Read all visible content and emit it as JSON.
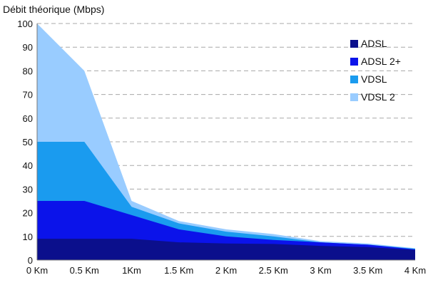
{
  "chart_data": {
    "type": "area",
    "stacked": false,
    "ylabel": "Débit théorique (Mbps)",
    "xlabel": "",
    "x": [
      0,
      0.5,
      1,
      1.5,
      2,
      2.5,
      3,
      3.5,
      4
    ],
    "x_tick_labels": [
      "0 Km",
      "0.5 Km",
      "1Km",
      "1.5 Km",
      "2 Km",
      "2.5 Km",
      "3 Km",
      "3.5 Km",
      "4 Km"
    ],
    "ylim": [
      0,
      100
    ],
    "y_ticks": [
      0,
      10,
      20,
      30,
      40,
      50,
      60,
      70,
      80,
      90,
      100
    ],
    "grid": true,
    "legend_position": "right",
    "series": [
      {
        "name": "VDSL 2",
        "color": "#99ccff",
        "x": [
          0,
          0.5,
          1,
          1.5,
          2,
          2.5,
          3,
          3.5,
          4
        ],
        "values": [
          100,
          80,
          25,
          16.5,
          13,
          11,
          8,
          7,
          5
        ]
      },
      {
        "name": "VDSL",
        "color": "#1a9bef",
        "x": [
          0,
          0.5,
          1,
          1.5,
          2,
          2.5,
          3,
          3.5,
          4
        ],
        "values": [
          50,
          50,
          22.5,
          15.5,
          12,
          10,
          7.5,
          6.5,
          4.8
        ]
      },
      {
        "name": "ADSL 2+",
        "color": "#0b13ea",
        "x": [
          0,
          0.5,
          1,
          1.5,
          2,
          2.5,
          3,
          3.5,
          4
        ],
        "values": [
          25,
          25,
          19,
          13,
          10,
          8.5,
          7.5,
          6.5,
          4.5
        ]
      },
      {
        "name": "ADSL",
        "color": "#0b0f8c",
        "x": [
          0,
          0.5,
          1,
          1.5,
          2,
          2.5,
          3,
          3.5,
          4
        ],
        "values": [
          9,
          9,
          9,
          7.5,
          7,
          6.8,
          6,
          5.5,
          4.3
        ]
      }
    ],
    "legend_order": [
      "ADSL",
      "ADSL 2+",
      "VDSL",
      "VDSL 2"
    ]
  }
}
